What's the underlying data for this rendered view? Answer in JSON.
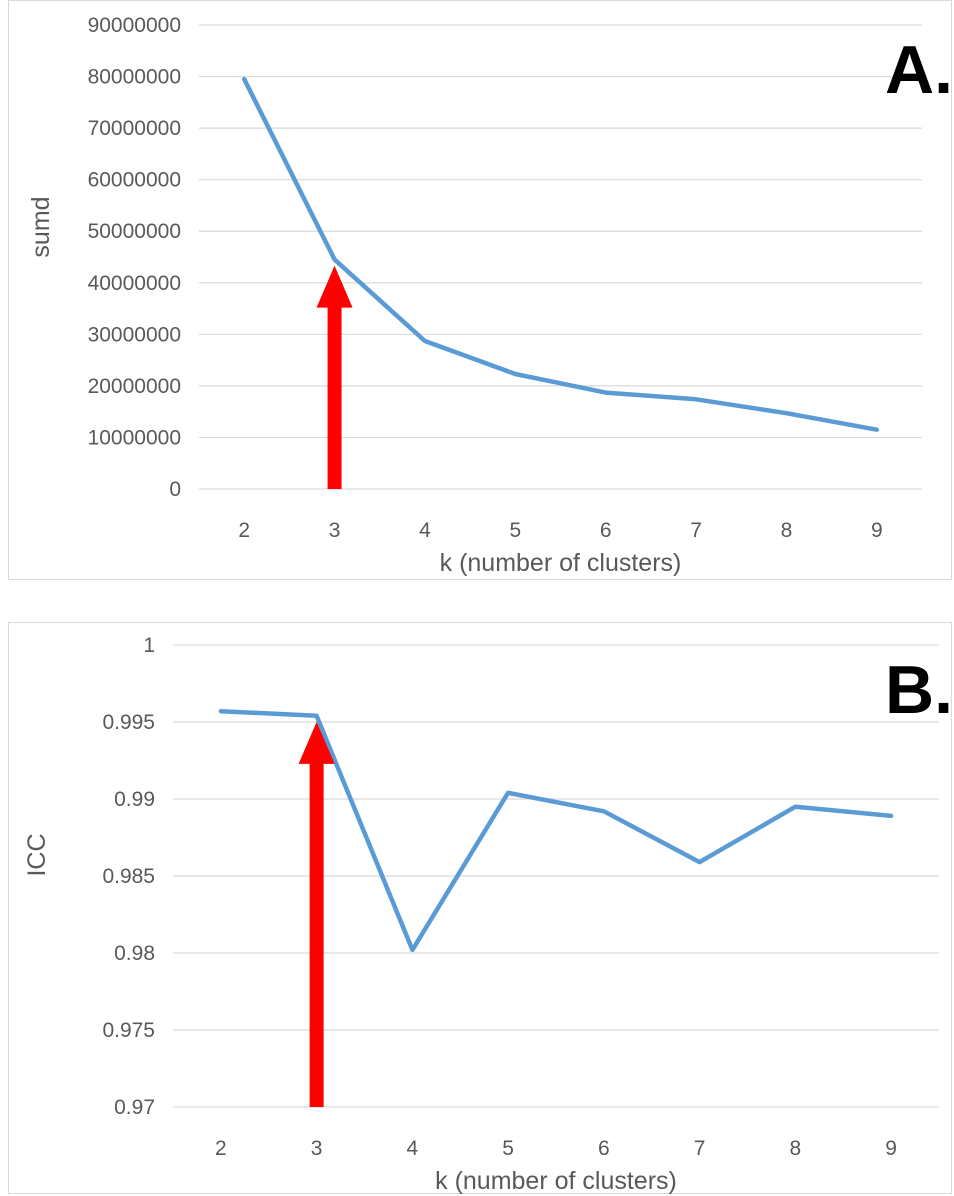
{
  "chart_data": [
    {
      "type": "line",
      "panel_label": "A.",
      "xlabel": "k (number of clusters)",
      "ylabel": "sumd",
      "x": [
        2,
        3,
        4,
        5,
        6,
        7,
        8,
        9
      ],
      "ylim": [
        0,
        90000000
      ],
      "yticks": [
        "0",
        "10000000",
        "20000000",
        "30000000",
        "40000000",
        "50000000",
        "60000000",
        "70000000",
        "80000000",
        "90000000"
      ],
      "grid": true,
      "series": [
        {
          "values": [
            79500000,
            44500000,
            28700000,
            22300000,
            18700000,
            17400000,
            14700000,
            11500000
          ],
          "color": "#5b9bd5"
        }
      ],
      "annotation": {
        "type": "arrow",
        "x": 3,
        "color": "#ff0000"
      }
    },
    {
      "type": "line",
      "panel_label": "B.",
      "xlabel": "k (number of clusters)",
      "ylabel": "ICC",
      "x": [
        2,
        3,
        4,
        5,
        6,
        7,
        8,
        9
      ],
      "ylim": [
        0.97,
        1.0
      ],
      "yticks": [
        "0.97",
        "0.975",
        "0.98",
        "0.985",
        "0.99",
        "0.995",
        "1"
      ],
      "grid": true,
      "series": [
        {
          "values": [
            0.9957,
            0.9954,
            0.9802,
            0.9904,
            0.9892,
            0.9859,
            0.9895,
            0.9889
          ],
          "color": "#5b9bd5"
        }
      ],
      "annotation": {
        "type": "arrow",
        "x": 3,
        "color": "#ff0000"
      }
    }
  ]
}
